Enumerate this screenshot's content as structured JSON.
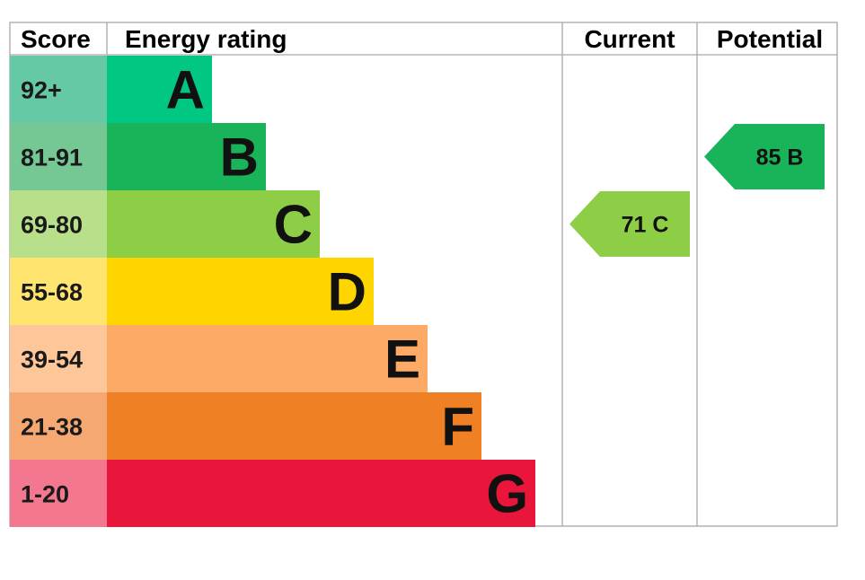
{
  "header": {
    "score": "Score",
    "energy_rating": "Energy rating",
    "current": "Current",
    "potential": "Potential"
  },
  "chart_data": {
    "type": "bar",
    "bands": [
      {
        "score": "92+",
        "letter": "A",
        "color": "#00c781",
        "score_bg": "#66c9a6"
      },
      {
        "score": "81-91",
        "letter": "B",
        "color": "#19b459",
        "score_bg": "#75c794"
      },
      {
        "score": "69-80",
        "letter": "C",
        "color": "#8dce46",
        "score_bg": "#b8e08a"
      },
      {
        "score": "55-68",
        "letter": "D",
        "color": "#ffd500",
        "score_bg": "#ffe56f"
      },
      {
        "score": "39-54",
        "letter": "E",
        "color": "#fcaa65",
        "score_bg": "#fdc79a"
      },
      {
        "score": "21-38",
        "letter": "F",
        "color": "#ef8023",
        "score_bg": "#f5a872"
      },
      {
        "score": "1-20",
        "letter": "G",
        "color": "#e9153b",
        "score_bg": "#f2778f"
      }
    ],
    "current": {
      "value": 71,
      "letter": "C",
      "label": "71  C",
      "color": "#8dce46"
    },
    "potential": {
      "value": 85,
      "letter": "B",
      "label": "85  B",
      "color": "#19b459"
    }
  }
}
